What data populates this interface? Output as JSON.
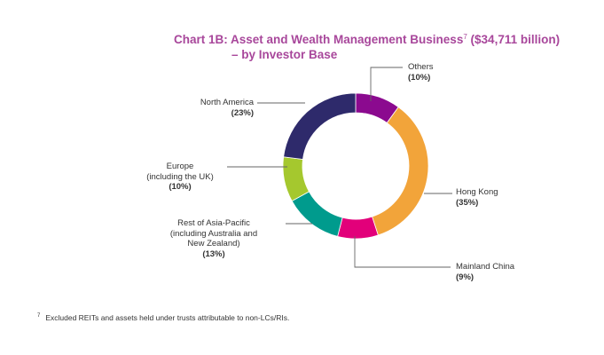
{
  "title": {
    "line1": "Chart 1B: Asset and Wealth Management Business",
    "footnote_mark": "7",
    "line1_suffix": "($34,711 billion)",
    "line2": "– by Investor Base"
  },
  "chart_data": {
    "type": "pie",
    "style": "donut",
    "title": "Chart 1B: Asset and Wealth Management Business7 ($34,711 billion) – by Investor Base",
    "slices": [
      {
        "label": "Others",
        "pct_text": "(10%)",
        "value": 10,
        "color": "#8B0A8F"
      },
      {
        "label": "Hong Kong",
        "pct_text": "(35%)",
        "value": 35,
        "color": "#F2A43A"
      },
      {
        "label": "Mainland China",
        "pct_text": "(9%)",
        "value": 9,
        "color": "#E2007A"
      },
      {
        "label": "Rest of Asia-Pacific (including Australia and New Zealand)",
        "pct_text": "(13%)",
        "value": 13,
        "color": "#009B8D"
      },
      {
        "label": "Europe (including the UK)",
        "pct_text": "(10%)",
        "value": 10,
        "color": "#A5C82E"
      },
      {
        "label": "North America",
        "pct_text": "(23%)",
        "value": 23,
        "color": "#2E2A6B"
      }
    ]
  },
  "labels": {
    "others": {
      "lines": [
        "Others"
      ],
      "pct": "(10%)"
    },
    "hong_kong": {
      "lines": [
        "Hong Kong"
      ],
      "pct": "(35%)"
    },
    "mainland_china": {
      "lines": [
        "Mainland China"
      ],
      "pct": "(9%)"
    },
    "rest_apac": {
      "lines": [
        "Rest of Asia-Pacific",
        "(including Australia and",
        "New Zealand)"
      ],
      "pct": "(13%)"
    },
    "europe": {
      "lines": [
        "Europe",
        "(including the UK)"
      ],
      "pct": "(10%)"
    },
    "north_america": {
      "lines": [
        "North America"
      ],
      "pct": "(23%)"
    }
  },
  "footnote": {
    "mark": "7",
    "text": "Excluded REITs and assets held under trusts attributable to non-LCs/RIs."
  }
}
